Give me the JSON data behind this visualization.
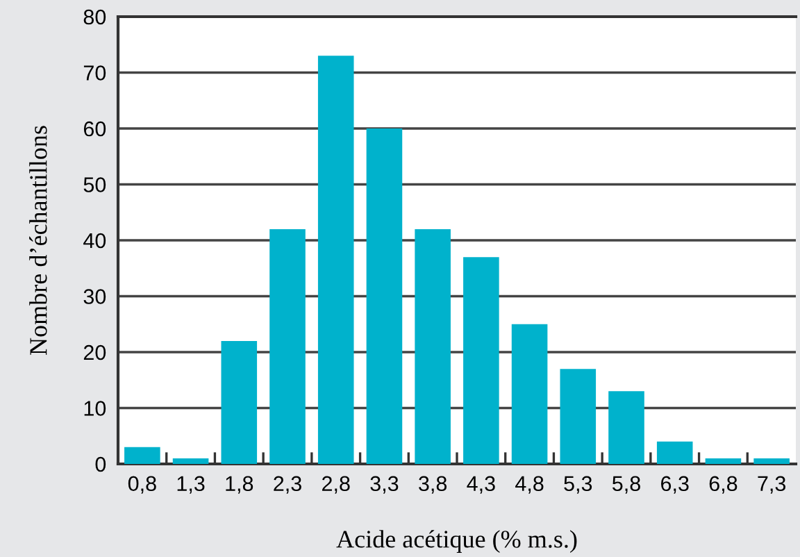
{
  "chart_data": {
    "type": "bar",
    "categories": [
      "0,8",
      "1,3",
      "1,8",
      "2,3",
      "2,8",
      "3,3",
      "3,8",
      "4,3",
      "4,8",
      "5,3",
      "5,8",
      "6,3",
      "6,8",
      "7,3"
    ],
    "values": [
      3,
      1,
      22,
      42,
      73,
      60,
      42,
      37,
      25,
      17,
      13,
      4,
      1,
      1
    ],
    "color": "#00b2cc",
    "xlabel": "Acide acétique (% m.s.)",
    "ylabel": "Nombre d’échantillons",
    "ylim": [
      0,
      80
    ],
    "yticks": [
      0,
      10,
      20,
      30,
      40,
      50,
      60,
      70,
      80
    ],
    "grid": "y"
  }
}
